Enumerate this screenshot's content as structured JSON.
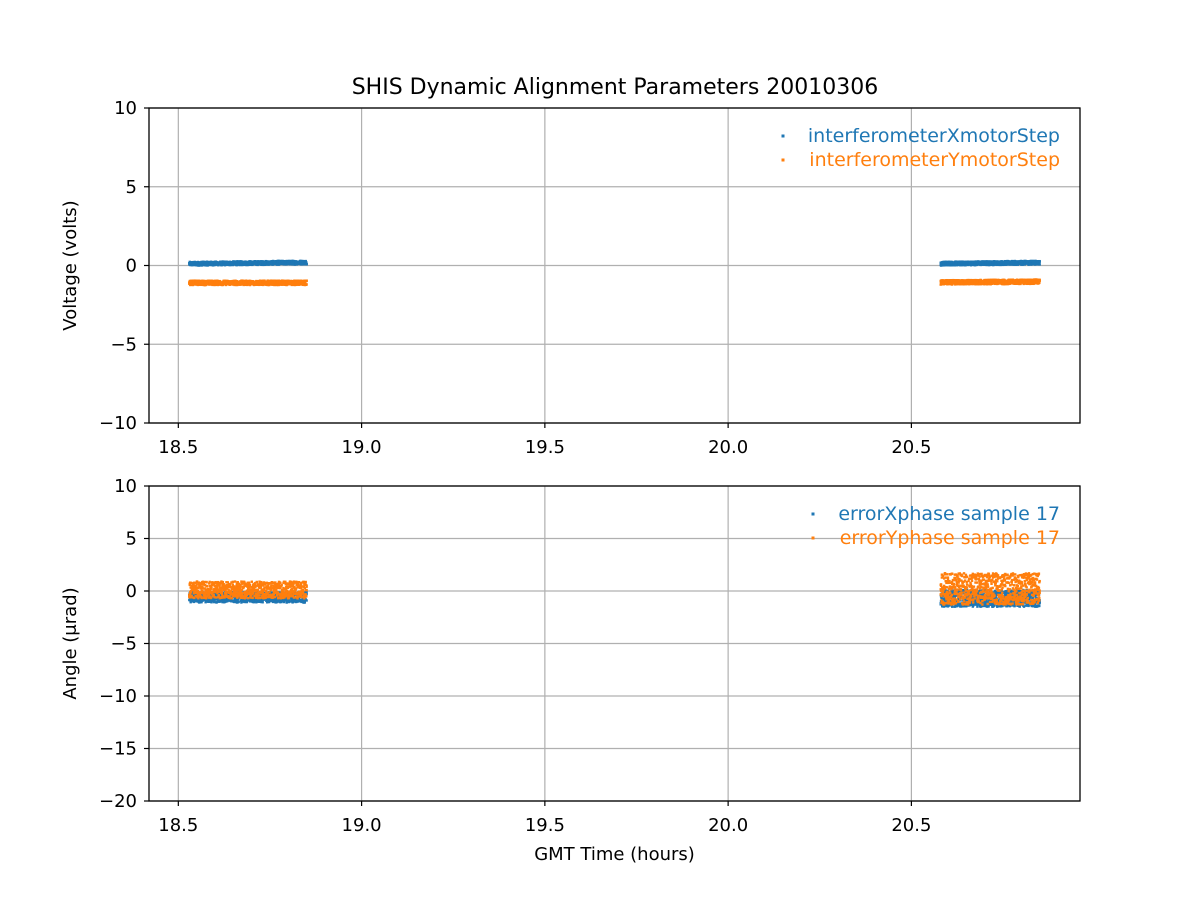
{
  "title": "SHIS Dynamic Alignment Parameters 20010306",
  "colors": {
    "series1": "#1f77b4",
    "series2": "#ff7f0e",
    "grid": "#b0b0b0",
    "axis": "#000000"
  },
  "chart_data": [
    {
      "type": "scatter",
      "xlabel": "",
      "ylabel": "Voltage (volts)",
      "xlim": [
        18.42,
        20.96
      ],
      "ylim": [
        -10,
        10
      ],
      "xticks": [
        18.5,
        19.0,
        19.5,
        20.0,
        20.5
      ],
      "xtick_labels": [
        "18.5",
        "19.0",
        "19.5",
        "20.0",
        "20.5"
      ],
      "yticks": [
        -10,
        -5,
        0,
        5,
        10
      ],
      "ytick_labels": [
        "−10",
        "−5",
        "0",
        "5",
        "10"
      ],
      "grid": true,
      "legend": "top-right",
      "series": [
        {
          "name": "interferometerXmotorStep",
          "segments": [
            {
              "x_start": 18.53,
              "x_end": 18.85,
              "y_center": 0.15,
              "y_spread": 0.12,
              "y_trend": 0.08
            },
            {
              "x_start": 20.58,
              "x_end": 20.85,
              "y_center": 0.15,
              "y_spread": 0.12,
              "y_trend": 0.06
            }
          ]
        },
        {
          "name": "interferometerYmotorStep",
          "segments": [
            {
              "x_start": 18.53,
              "x_end": 18.85,
              "y_center": -1.1,
              "y_spread": 0.14,
              "y_trend": 0.0
            },
            {
              "x_start": 20.58,
              "x_end": 20.85,
              "y_center": -1.05,
              "y_spread": 0.14,
              "y_trend": 0.05
            }
          ]
        }
      ]
    },
    {
      "type": "scatter",
      "xlabel": "GMT Time (hours)",
      "ylabel": "Angle (μrad)",
      "xlim": [
        18.42,
        20.96
      ],
      "ylim": [
        -20,
        10
      ],
      "xticks": [
        18.5,
        19.0,
        19.5,
        20.0,
        20.5
      ],
      "xtick_labels": [
        "18.5",
        "19.0",
        "19.5",
        "20.0",
        "20.5"
      ],
      "yticks": [
        -20,
        -15,
        -10,
        -5,
        0,
        5,
        10
      ],
      "ytick_labels": [
        "−20",
        "−15",
        "−10",
        "−5",
        "0",
        "5",
        "10"
      ],
      "grid": true,
      "legend": "top-right",
      "series": [
        {
          "name": "errorXphase sample 17",
          "segments": [
            {
              "x_start": 18.53,
              "x_end": 18.85,
              "y_center": -0.6,
              "y_spread": 0.5,
              "y_trend": 0.0
            },
            {
              "x_start": 20.58,
              "x_end": 20.85,
              "y_center": -0.7,
              "y_spread": 0.8,
              "y_trend": 0.0
            }
          ]
        },
        {
          "name": "errorYphase sample 17",
          "segments": [
            {
              "x_start": 18.53,
              "x_end": 18.85,
              "y_center": 0.1,
              "y_spread": 0.8,
              "y_trend": 0.0
            },
            {
              "x_start": 20.58,
              "x_end": 20.85,
              "y_center": 0.2,
              "y_spread": 1.5,
              "y_trend": 0.0
            }
          ]
        }
      ]
    }
  ]
}
